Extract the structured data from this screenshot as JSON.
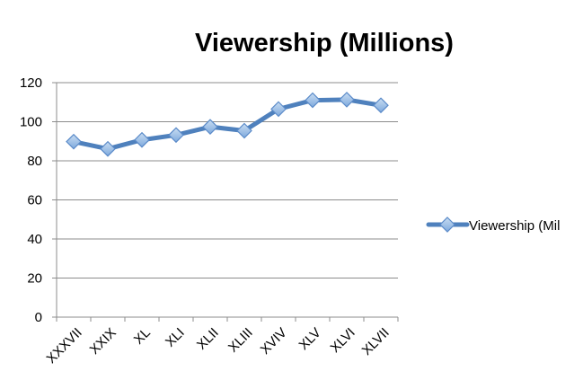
{
  "chart_data": {
    "type": "line",
    "title": "Viewership (Millions)",
    "xlabel": "",
    "ylabel": "",
    "categories": [
      "XXXVII",
      "XXIX",
      "XL",
      "XLI",
      "XLII",
      "XLIII",
      "XVIV",
      "XLV",
      "XLVI",
      "XLVII"
    ],
    "series": [
      {
        "name": "Viewership (Millions)",
        "values": [
          89.8,
          86.1,
          90.7,
          93.2,
          97.4,
          95.4,
          106.5,
          111.0,
          111.3,
          108.4
        ],
        "color": "#4F81BD",
        "marker": "diamond"
      }
    ],
    "ylim": [
      0,
      120
    ],
    "yticks": [
      0,
      20,
      40,
      60,
      80,
      100,
      120
    ],
    "grid": true,
    "legend_position": "right"
  },
  "legend": {
    "visible_text": "Viewership (Mil"
  },
  "colors": {
    "series": "#4F81BD",
    "marker_fill": "#9DC3E6",
    "marker_stroke": "#5B8BC9",
    "gridline": "#8C8C8C",
    "axis": "#8C8C8C"
  }
}
